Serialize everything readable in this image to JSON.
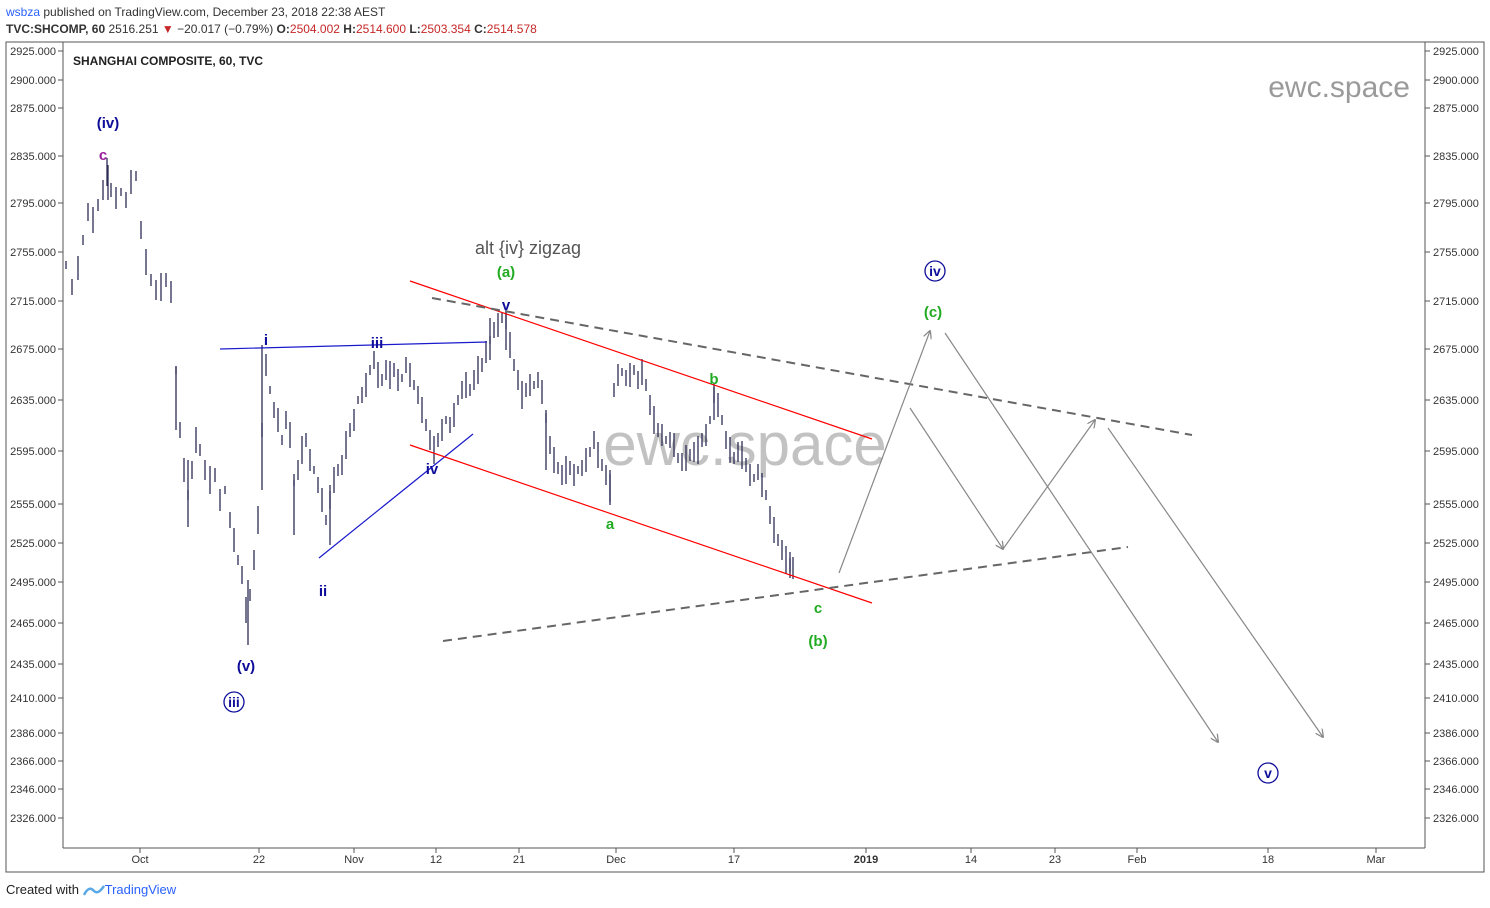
{
  "header": {
    "publisher": "wsbza",
    "published_text": "published on TradingView.com, December 23, 2018 22:38 AEST",
    "symbol": "TVC:SHCOMP, 60",
    "last": "2516.251",
    "change_arrow": "▼",
    "change": "−20.017 (−0.79%)",
    "o_label": "O:",
    "o": "2504.002",
    "h_label": "H:",
    "h": "2514.600",
    "l_label": "L:",
    "l": "2503.354",
    "c_label": "C:",
    "c": "2514.578"
  },
  "footer": {
    "created_with": "Created with",
    "brand": "TradingView"
  },
  "chart_data": {
    "type": "candlestick",
    "title": "SHANGHAI COMPOSITE, 60, TVC",
    "watermarks": [
      "ewc.space",
      "ewc.space"
    ],
    "y_ticks": [
      2925,
      2900,
      2875,
      2835,
      2795,
      2755,
      2715,
      2675,
      2635,
      2595,
      2555,
      2525,
      2495,
      2465,
      2435,
      2410,
      2386,
      2366,
      2346,
      2326
    ],
    "y_tick_format": "0.000",
    "x_ticks": [
      "Oct",
      "22",
      "Nov",
      "12",
      "21",
      "Dec",
      "17",
      "2019",
      "14",
      "23",
      "Feb",
      "18",
      "Mar"
    ],
    "colors": {
      "bars": "#2c2c54",
      "channel": "#ff0000",
      "trendline": "#1a1acc",
      "dashed": "#666666",
      "arrows": "#888888",
      "blue_label": "#0d0d99",
      "green_label": "#22aa22",
      "purple_label": "#9b1f9b",
      "grey_text": "#555555"
    },
    "annotations": [
      {
        "text": "(iv)",
        "color": "blue",
        "style": "bold"
      },
      {
        "text": "c",
        "color": "purple",
        "style": "bold"
      },
      {
        "text": "i",
        "color": "blue",
        "style": "bold"
      },
      {
        "text": "ii",
        "color": "blue",
        "style": "bold"
      },
      {
        "text": "iii",
        "color": "blue",
        "style": "bold"
      },
      {
        "text": "iv",
        "color": "blue",
        "style": "bold"
      },
      {
        "text": "v",
        "color": "blue",
        "style": "bold"
      },
      {
        "text": "(v)",
        "color": "blue",
        "style": "bold"
      },
      {
        "text": "iii",
        "color": "blue",
        "style": "circled"
      },
      {
        "text": "alt {iv} zigzag",
        "color": "grey",
        "style": "plain"
      },
      {
        "text": "(a)",
        "color": "green",
        "style": "bold"
      },
      {
        "text": "a",
        "color": "green",
        "style": "bold"
      },
      {
        "text": "b",
        "color": "green",
        "style": "bold"
      },
      {
        "text": "c",
        "color": "green",
        "style": "bold"
      },
      {
        "text": "(b)",
        "color": "green",
        "style": "bold"
      },
      {
        "text": "iv",
        "color": "blue",
        "style": "circled"
      },
      {
        "text": "(c)",
        "color": "green",
        "style": "bold"
      },
      {
        "text": "v",
        "color": "blue",
        "style": "circled"
      }
    ]
  }
}
